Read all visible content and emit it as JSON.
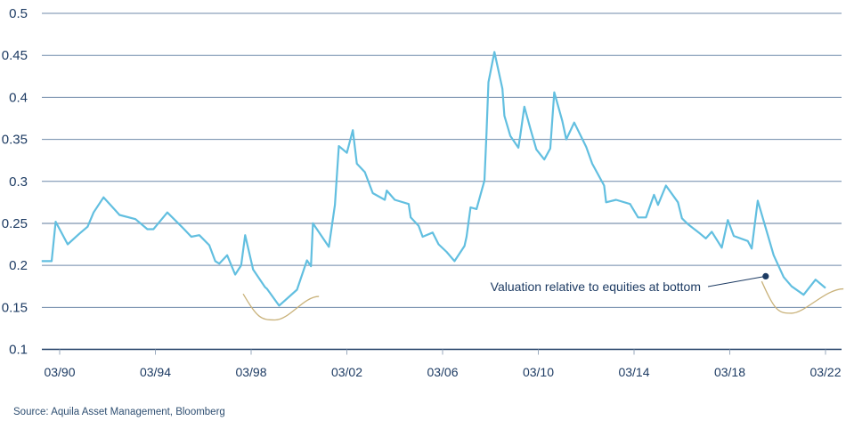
{
  "chart_data": {
    "type": "line",
    "title": "",
    "xlabel": "",
    "ylabel": "",
    "ylim": [
      0.1,
      0.5
    ],
    "yticks": [
      "0.1",
      "0.15",
      "0.2",
      "0.25",
      "0.3",
      "0.35",
      "0.4",
      "0.45",
      "0.5"
    ],
    "xticks": [
      {
        "date": "1990-03",
        "label": "03/90"
      },
      {
        "date": "1994-03",
        "label": "03/94"
      },
      {
        "date": "1998-03",
        "label": "03/98"
      },
      {
        "date": "2002-03",
        "label": "03/02"
      },
      {
        "date": "2006-03",
        "label": "03/06"
      },
      {
        "date": "2010-03",
        "label": "03/10"
      },
      {
        "date": "2014-03",
        "label": "03/14"
      },
      {
        "date": "2018-03",
        "label": "03/18"
      },
      {
        "date": "2022-03",
        "label": "03/22"
      }
    ],
    "grid": true,
    "colors": {
      "line": "#62bfe0",
      "grid": "#6f89aa",
      "axis": "#1d3b63",
      "highlight": "#c9b27a",
      "annotation": "#1d3b63"
    },
    "series": [
      {
        "x": [
          "1989-06",
          "1989-11",
          "1990-01",
          "1990-07",
          "1991-01",
          "1991-05",
          "1991-08",
          "1992-01",
          "1992-09",
          "1993-05",
          "1993-11",
          "1994-02",
          "1994-09",
          "1995-05",
          "1995-09",
          "1996-01",
          "1996-06",
          "1996-09",
          "1996-11",
          "1997-03",
          "1997-07",
          "1997-10",
          "1997-12",
          "1998-04",
          "1998-10",
          "1998-11",
          "1999-05",
          "2000-02",
          "2000-07",
          "2000-09",
          "2000-10",
          "2001-06",
          "2001-09",
          "2001-11",
          "2002-03",
          "2002-06",
          "2002-08",
          "2002-12",
          "2003-04",
          "2003-10",
          "2003-11",
          "2004-03",
          "2004-10",
          "2004-11",
          "2005-03",
          "2005-05",
          "2005-10",
          "2006-01",
          "2006-05",
          "2006-09",
          "2007-02",
          "2007-03",
          "2007-05",
          "2007-08",
          "2007-12",
          "2008-01",
          "2008-02",
          "2008-05",
          "2008-09",
          "2008-10",
          "2009-01",
          "2009-05",
          "2009-06",
          "2009-08",
          "2009-11",
          "2010-02",
          "2010-06",
          "2010-09",
          "2010-11",
          "2011-03",
          "2011-05",
          "2011-09",
          "2012-03",
          "2012-06",
          "2012-12",
          "2013-01",
          "2013-06",
          "2014-01",
          "2014-05",
          "2014-09",
          "2015-01",
          "2015-03",
          "2015-07",
          "2016-01",
          "2016-03",
          "2016-06",
          "2016-12",
          "2017-03",
          "2017-06",
          "2017-11",
          "2018-02",
          "2018-05",
          "2018-12",
          "2019-02",
          "2019-05",
          "2020-01",
          "2020-06",
          "2020-10",
          "2021-04",
          "2021-10",
          "2022-03"
        ],
        "y": [
          0.205,
          0.205,
          0.252,
          0.225,
          0.238,
          0.246,
          0.263,
          0.281,
          0.26,
          0.255,
          0.243,
          0.243,
          0.263,
          0.244,
          0.234,
          0.236,
          0.224,
          0.205,
          0.202,
          0.212,
          0.189,
          0.2,
          0.236,
          0.195,
          0.174,
          0.172,
          0.152,
          0.171,
          0.206,
          0.199,
          0.25,
          0.222,
          0.272,
          0.342,
          0.334,
          0.361,
          0.321,
          0.311,
          0.286,
          0.278,
          0.289,
          0.278,
          0.273,
          0.257,
          0.247,
          0.234,
          0.239,
          0.225,
          0.216,
          0.205,
          0.223,
          0.234,
          0.269,
          0.267,
          0.301,
          0.357,
          0.418,
          0.454,
          0.41,
          0.378,
          0.354,
          0.34,
          0.355,
          0.389,
          0.363,
          0.338,
          0.326,
          0.339,
          0.406,
          0.372,
          0.35,
          0.37,
          0.341,
          0.321,
          0.295,
          0.275,
          0.278,
          0.273,
          0.257,
          0.257,
          0.284,
          0.272,
          0.295,
          0.275,
          0.256,
          0.249,
          0.238,
          0.232,
          0.24,
          0.221,
          0.254,
          0.235,
          0.229,
          0.22,
          0.277,
          0.212,
          0.186,
          0.175,
          0.165,
          0.183,
          0.173
        ]
      }
    ],
    "highlights": [
      {
        "start": "1997-11",
        "bottom": "1999-03",
        "end": "2001-01",
        "start_y": 0.166,
        "min_y": 0.135,
        "end_y": 0.163
      },
      {
        "start": "2019-07",
        "bottom": "2020-10",
        "end": "2022-12",
        "start_y": 0.181,
        "min_y": 0.143,
        "end_y": 0.172
      }
    ],
    "annotation": {
      "text": "Valuation relative to equities at bottom",
      "date": "2019-09",
      "y": 0.187
    }
  },
  "source": "Source: Aquila Asset Management, Bloomberg"
}
